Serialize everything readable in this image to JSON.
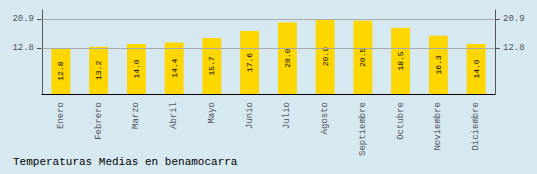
{
  "chart_data": {
    "type": "bar",
    "title": "Temperaturas Medias en benamocarra",
    "categories": [
      "Enero",
      "Febrero",
      "Marzo",
      "Abril",
      "Mayo",
      "Junio",
      "Julio",
      "Agosto",
      "Septiembre",
      "Octubre",
      "Noviembre",
      "Diciembre"
    ],
    "values": [
      12.8,
      13.2,
      14.0,
      14.4,
      15.7,
      17.6,
      20.0,
      20.9,
      20.5,
      18.5,
      16.3,
      14.0
    ],
    "value_labels": [
      "12.8",
      "13.2",
      "14.0",
      "14.4",
      "15.7",
      "17.6",
      "20.0",
      "20.9",
      "20.5",
      "18.5",
      "16.3",
      "14.0"
    ],
    "color": "#FFD700",
    "ylim": [
      0.0,
      23.5
    ],
    "yticks": [
      12.8,
      20.9
    ],
    "grid": true,
    "data_labels": true
  }
}
